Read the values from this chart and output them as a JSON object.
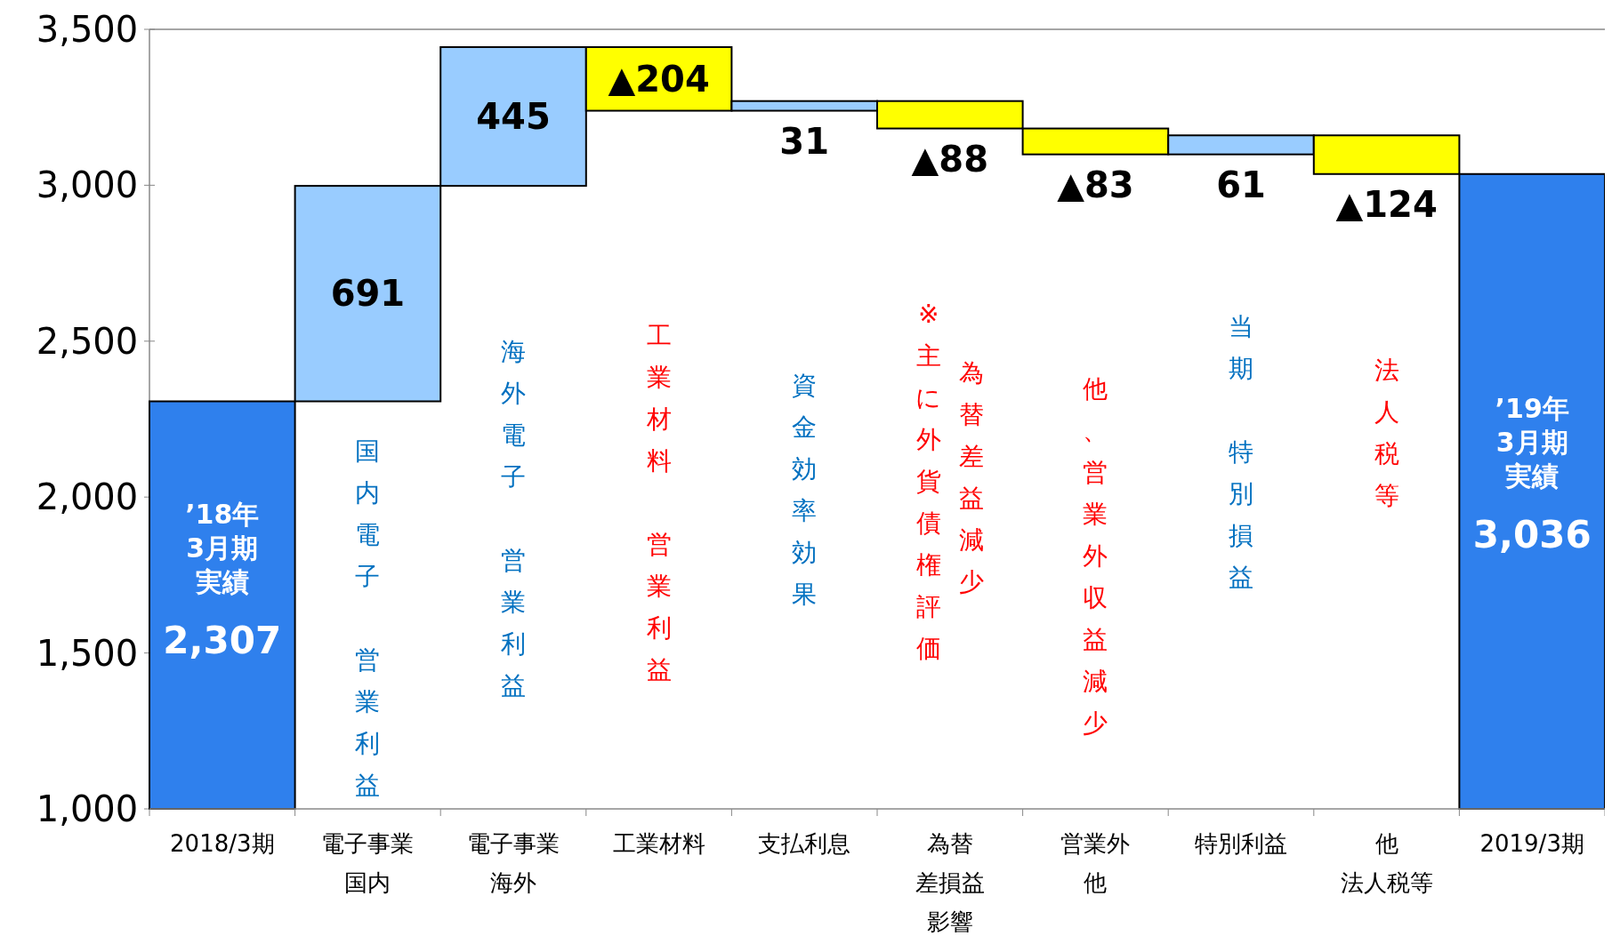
{
  "chart_data": {
    "type": "bar",
    "categories": [
      "2018/3期",
      "電子事業国内",
      "電子事業海外",
      "工業材料",
      "支払利息",
      "為替差損益影響",
      "営業外他",
      "特別利益",
      "他法人税等",
      "2019/3期"
    ],
    "values": [
      2307,
      691,
      445,
      -204,
      31,
      -88,
      -83,
      61,
      -124,
      3036
    ],
    "base": [
      null,
      2307,
      2998,
      3443,
      3239,
      3270,
      3182,
      3099,
      3160,
      null
    ],
    "colors": [
      "#2f80ed",
      "#99ccff",
      "#99ccff",
      "#ffff00",
      "#99ccff",
      "#ffff00",
      "#ffff00",
      "#99ccff",
      "#ffff00",
      "#2f80ed"
    ],
    "value_labels": [
      "2,307",
      "691",
      "445",
      "▲204",
      "31",
      "▲88",
      "▲83",
      "61",
      "▲124",
      "3,036"
    ],
    "ylim": [
      1000,
      3500
    ],
    "yticks": [
      {
        "value": 1000,
        "label": "1,000"
      },
      {
        "value": 1500,
        "label": "1,500"
      },
      {
        "value": 2000,
        "label": "2,000"
      },
      {
        "value": 2500,
        "label": "2,500"
      },
      {
        "value": 3000,
        "label": "3,000"
      },
      {
        "value": 3500,
        "label": "3,500"
      }
    ],
    "annotations": [
      "’18年3月期実績",
      "国内電子営業利益",
      "海外電子営業利益",
      "工業材料営業利益",
      "資金効率効果",
      "為替差益減少",
      "※主に外貨債権評価",
      "他、営業外収益減少",
      "当期特別損益",
      "法人税等",
      "’19年3月期実績"
    ]
  }
}
